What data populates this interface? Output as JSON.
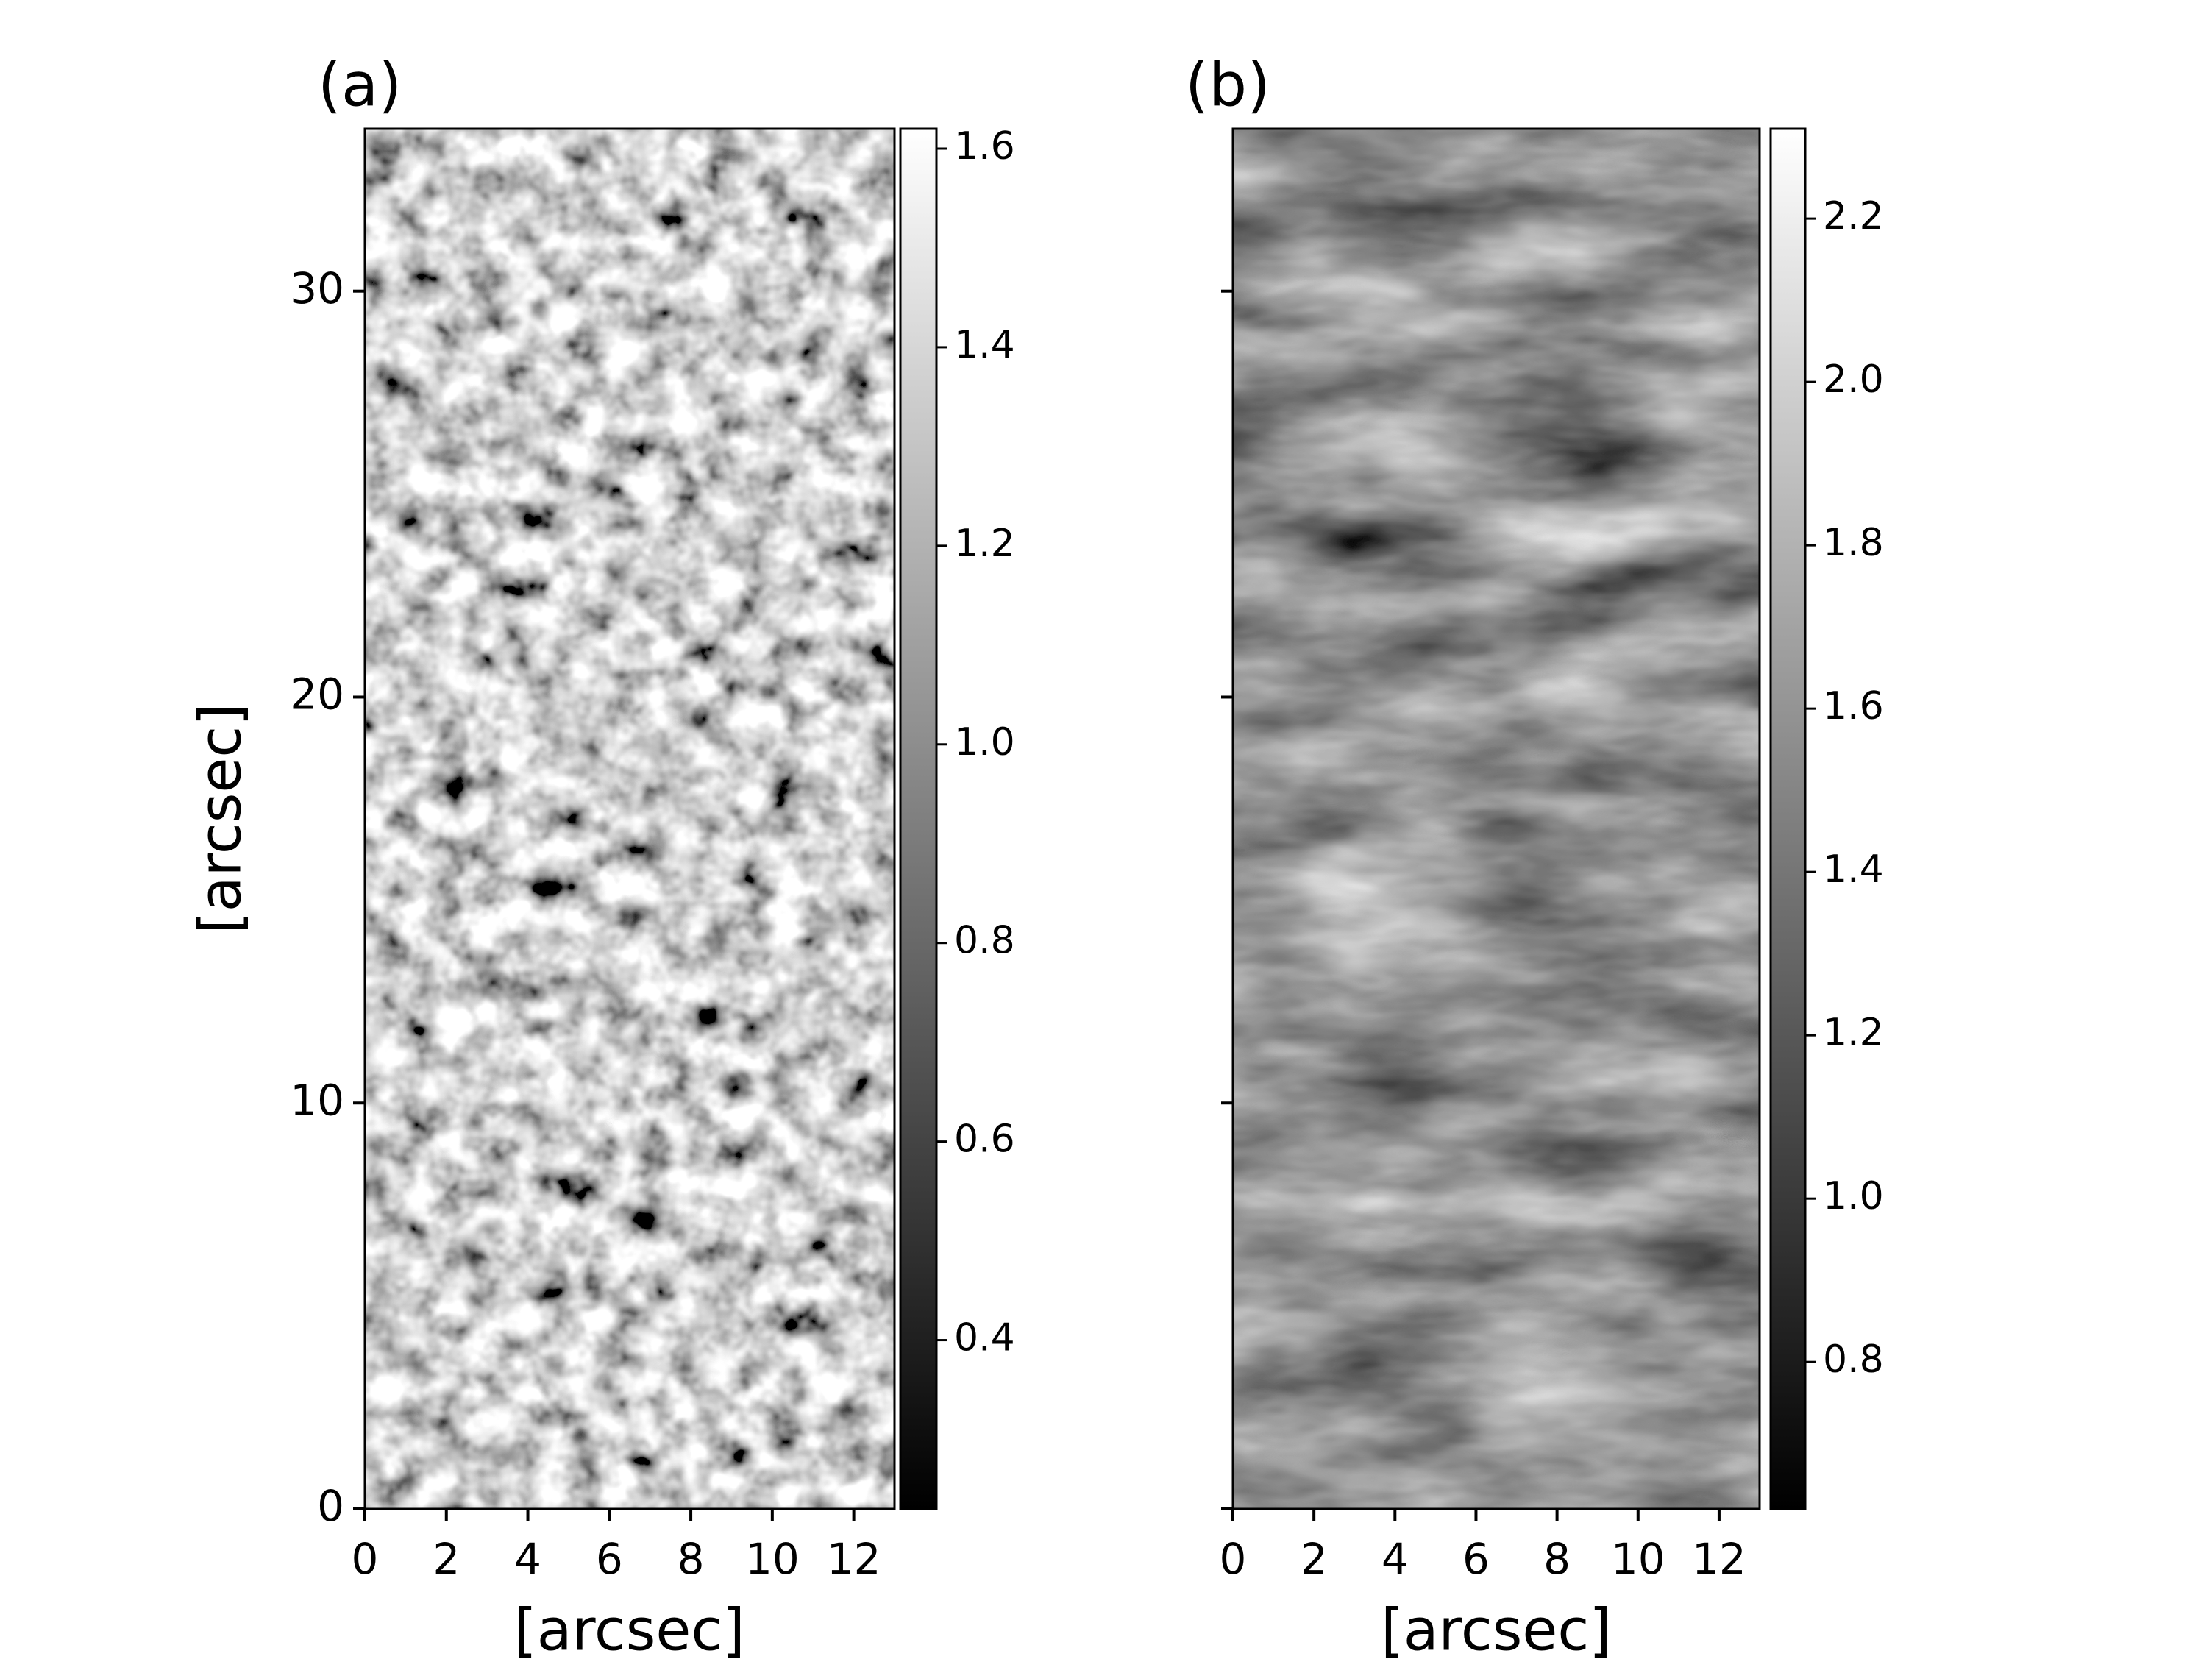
{
  "chart_data": [
    {
      "type": "image",
      "title": "(a)",
      "xlabel": "[arcsec]",
      "ylabel": "[arcsec]",
      "xlim": [
        0,
        13
      ],
      "ylim": [
        0,
        34
      ],
      "xticks": [
        0,
        2,
        4,
        6,
        8,
        10,
        12
      ],
      "yticks": [
        0,
        10,
        20,
        30
      ],
      "ytick_labels": true,
      "cmap": "gray",
      "colorbar": {
        "lim": [
          0.23,
          1.62
        ],
        "ticks": [
          0.4,
          0.6,
          0.8,
          {
            "value": 1,
            "label": "1.0"
          },
          1.2,
          1.4,
          1.6
        ]
      }
    },
    {
      "type": "image",
      "title": "(b)",
      "xlabel": "[arcsec]",
      "xlim": [
        0,
        13
      ],
      "ylim": [
        0,
        34
      ],
      "xticks": [
        0,
        2,
        4,
        6,
        8,
        10,
        12
      ],
      "yticks": [
        0,
        10,
        20,
        30
      ],
      "ytick_labels": false,
      "cmap": "gray",
      "colorbar": {
        "lim": [
          0.62,
          2.31
        ],
        "ticks": [
          0.8,
          {
            "value": 1,
            "label": "1.0"
          },
          1.2,
          1.4,
          1.6,
          1.8,
          {
            "value": 2,
            "label": "2.0"
          },
          2.2
        ]
      }
    }
  ]
}
